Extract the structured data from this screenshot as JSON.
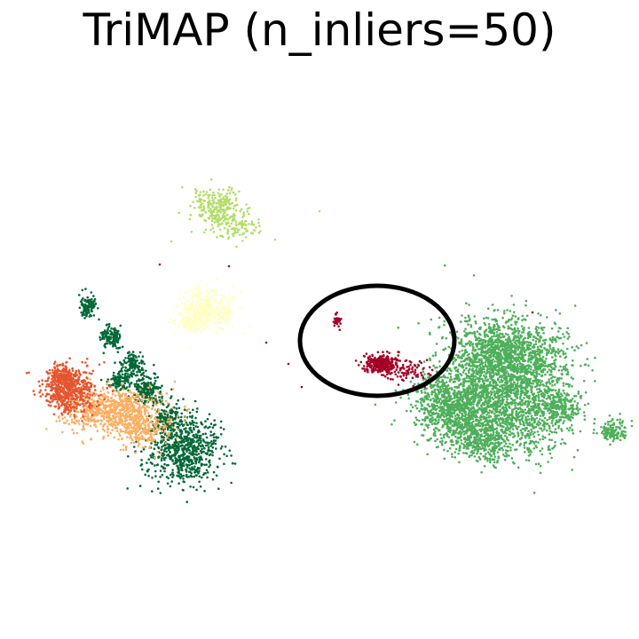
{
  "chart_data": {
    "type": "scatter",
    "title": "TriMAP (n_inliers=50)",
    "xlabel": "",
    "ylabel": "",
    "axes": "off",
    "grid": false,
    "legend": "none",
    "clusters": [
      {
        "id": "light-green-cluster",
        "color": "#b3de69"
      },
      {
        "id": "pale-yellow-cluster",
        "color": "#ffffbf"
      },
      {
        "id": "dark-green-cluster",
        "color": "#006837"
      },
      {
        "id": "orange-red-cluster",
        "color": "#e5552f"
      },
      {
        "id": "light-orange-cluster",
        "color": "#fdae61"
      },
      {
        "id": "crimson-cluster",
        "color": "#a50026"
      },
      {
        "id": "medium-green-cluster",
        "color": "#4daf5a"
      }
    ],
    "highlight": {
      "shape": "ellipse",
      "color": "#000000",
      "target": "crimson-cluster"
    }
  }
}
